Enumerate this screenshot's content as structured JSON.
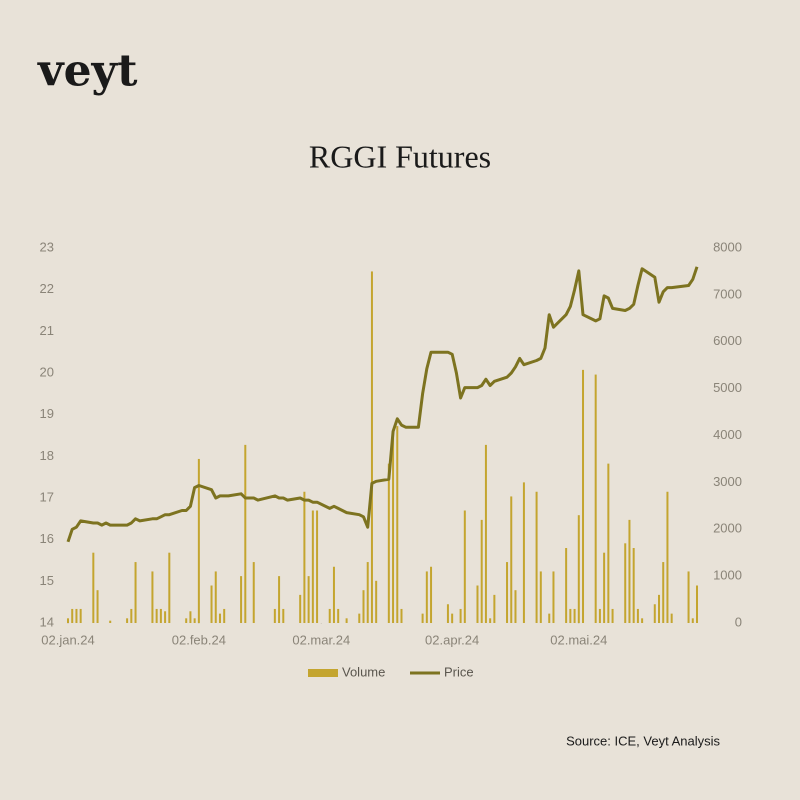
{
  "brand": "veyt",
  "source": "Source: ICE, Veyt Analysis",
  "chart_data": {
    "type": "combo",
    "title": "RGGI Futures",
    "x": [
      "2024-01-02",
      "2024-01-03",
      "2024-01-04",
      "2024-01-05",
      "2024-01-08",
      "2024-01-09",
      "2024-01-10",
      "2024-01-11",
      "2024-01-12",
      "2024-01-16",
      "2024-01-17",
      "2024-01-18",
      "2024-01-19",
      "2024-01-22",
      "2024-01-23",
      "2024-01-24",
      "2024-01-25",
      "2024-01-26",
      "2024-01-29",
      "2024-01-30",
      "2024-01-31",
      "2024-02-01",
      "2024-02-02",
      "2024-02-05",
      "2024-02-06",
      "2024-02-07",
      "2024-02-08",
      "2024-02-09",
      "2024-02-12",
      "2024-02-13",
      "2024-02-14",
      "2024-02-15",
      "2024-02-16",
      "2024-02-20",
      "2024-02-21",
      "2024-02-22",
      "2024-02-23",
      "2024-02-26",
      "2024-02-27",
      "2024-02-28",
      "2024-02-29",
      "2024-03-01",
      "2024-03-04",
      "2024-03-05",
      "2024-03-06",
      "2024-03-07",
      "2024-03-08",
      "2024-03-11",
      "2024-03-12",
      "2024-03-13",
      "2024-03-14",
      "2024-03-15",
      "2024-03-18",
      "2024-03-19",
      "2024-03-20",
      "2024-03-21",
      "2024-03-22",
      "2024-03-25",
      "2024-03-26",
      "2024-03-27",
      "2024-03-28",
      "2024-04-01",
      "2024-04-02",
      "2024-04-03",
      "2024-04-04",
      "2024-04-05",
      "2024-04-08",
      "2024-04-09",
      "2024-04-10",
      "2024-04-11",
      "2024-04-12",
      "2024-04-15",
      "2024-04-16",
      "2024-04-17",
      "2024-04-18",
      "2024-04-19",
      "2024-04-22",
      "2024-04-23",
      "2024-04-24",
      "2024-04-25",
      "2024-04-26",
      "2024-04-29",
      "2024-04-30",
      "2024-05-01",
      "2024-05-02",
      "2024-05-03",
      "2024-05-06",
      "2024-05-07",
      "2024-05-08",
      "2024-05-09",
      "2024-05-10",
      "2024-05-13",
      "2024-05-14",
      "2024-05-15",
      "2024-05-16",
      "2024-05-17",
      "2024-05-20",
      "2024-05-21",
      "2024-05-22",
      "2024-05-23",
      "2024-05-24",
      "2024-05-28",
      "2024-05-29",
      "2024-05-30"
    ],
    "series": [
      {
        "name": "Volume",
        "kind": "bar",
        "axis": "y2",
        "color": "#c4a52f",
        "values": [
          100,
          300,
          300,
          300,
          1500,
          700,
          0,
          0,
          50,
          100,
          300,
          1300,
          0,
          1100,
          300,
          300,
          250,
          1500,
          0,
          100,
          250,
          100,
          3500,
          800,
          1100,
          200,
          300,
          0,
          1000,
          3800,
          0,
          1300,
          0,
          300,
          1000,
          300,
          0,
          600,
          2800,
          1000,
          2400,
          2400,
          300,
          1200,
          300,
          0,
          100,
          200,
          700,
          1300,
          7500,
          900,
          3400,
          4100,
          4200,
          300,
          0,
          0,
          200,
          1100,
          1200,
          400,
          200,
          0,
          300,
          2400,
          800,
          2200,
          3800,
          100,
          600,
          1300,
          2700,
          700,
          0,
          3000,
          2800,
          1100,
          0,
          200,
          1100,
          1600,
          300,
          300,
          2300,
          5400,
          5300,
          300,
          1500,
          3400,
          300,
          1700,
          2200,
          1600,
          300,
          100,
          400,
          600,
          1300,
          2800,
          200,
          1100,
          100,
          800
        ]
      },
      {
        "name": "Price",
        "kind": "line",
        "axis": "y",
        "color": "#7d7320",
        "values": [
          15.95,
          16.25,
          16.3,
          16.45,
          16.4,
          16.4,
          16.35,
          16.4,
          16.35,
          16.35,
          16.4,
          16.5,
          16.45,
          16.5,
          16.5,
          16.55,
          16.6,
          16.6,
          16.7,
          16.7,
          16.8,
          17.25,
          17.3,
          17.2,
          17.0,
          17.05,
          17.05,
          17.05,
          17.1,
          17.0,
          17.0,
          17.0,
          16.95,
          17.05,
          17.0,
          17.0,
          16.95,
          17.0,
          16.95,
          16.95,
          16.9,
          16.9,
          16.75,
          16.8,
          16.75,
          16.7,
          16.65,
          16.6,
          16.55,
          16.3,
          17.35,
          17.4,
          17.45,
          18.6,
          18.9,
          18.75,
          18.7,
          18.7,
          19.5,
          20.1,
          20.5,
          20.5,
          20.45,
          20.0,
          19.4,
          19.65,
          19.65,
          19.7,
          19.85,
          19.7,
          19.8,
          19.9,
          20.0,
          20.15,
          20.35,
          20.2,
          20.3,
          20.35,
          20.6,
          21.4,
          21.1,
          21.4,
          21.6,
          22.0,
          22.45,
          21.4,
          21.25,
          21.3,
          21.85,
          21.8,
          21.55,
          21.5,
          21.55,
          21.65,
          22.1,
          22.5,
          22.3,
          21.7,
          21.95,
          22.05,
          22.05,
          22.1,
          22.25,
          22.55
        ]
      }
    ],
    "xlim": [
      "2024-01-02",
      "2024-05-30"
    ],
    "xticks": [
      {
        "value": "2024-01-02",
        "label": "02.jan.24"
      },
      {
        "value": "2024-02-02",
        "label": "02.feb.24"
      },
      {
        "value": "2024-03-02",
        "label": "02.mar.24"
      },
      {
        "value": "2024-04-02",
        "label": "02.apr.24"
      },
      {
        "value": "2024-05-02",
        "label": "02.mai.24"
      }
    ],
    "ylim": [
      14,
      23
    ],
    "yticks": [
      14,
      15,
      16,
      17,
      18,
      19,
      20,
      21,
      22,
      23
    ],
    "y2lim": [
      0,
      8000
    ],
    "y2ticks": [
      0,
      1000,
      2000,
      3000,
      4000,
      5000,
      6000,
      7000,
      8000
    ],
    "grid": false,
    "legend": "bottom"
  }
}
